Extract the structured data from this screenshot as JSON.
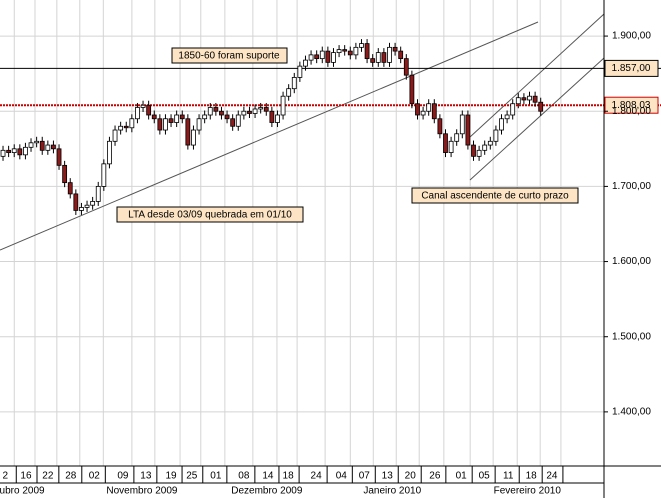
{
  "chart_data": {
    "type": "candlestick",
    "candles": [
      [
        1740,
        1754,
        1734,
        1748
      ],
      [
        1748,
        1754,
        1739,
        1745
      ],
      [
        1745,
        1756,
        1739,
        1750
      ],
      [
        1750,
        1756,
        1736,
        1742
      ],
      [
        1742,
        1758,
        1736,
        1752
      ],
      [
        1752,
        1764,
        1746,
        1758
      ],
      [
        1758,
        1766,
        1752,
        1760
      ],
      [
        1760,
        1766,
        1742,
        1748
      ],
      [
        1748,
        1761,
        1742,
        1755
      ],
      [
        1755,
        1761,
        1744,
        1750
      ],
      [
        1750,
        1756,
        1722,
        1728
      ],
      [
        1728,
        1734,
        1699,
        1705
      ],
      [
        1705,
        1711,
        1684,
        1690
      ],
      [
        1690,
        1696,
        1662,
        1668
      ],
      [
        1668,
        1678,
        1662,
        1672
      ],
      [
        1672,
        1681,
        1666,
        1675
      ],
      [
        1675,
        1686,
        1669,
        1680
      ],
      [
        1680,
        1706,
        1674,
        1700
      ],
      [
        1700,
        1736,
        1694,
        1730
      ],
      [
        1730,
        1766,
        1724,
        1760
      ],
      [
        1760,
        1781,
        1754,
        1775
      ],
      [
        1775,
        1786,
        1769,
        1780
      ],
      [
        1780,
        1786,
        1772,
        1778
      ],
      [
        1778,
        1796,
        1772,
        1790
      ],
      [
        1790,
        1811,
        1784,
        1805
      ],
      [
        1805,
        1814,
        1799,
        1808
      ],
      [
        1808,
        1814,
        1789,
        1795
      ],
      [
        1795,
        1801,
        1784,
        1790
      ],
      [
        1790,
        1796,
        1769,
        1775
      ],
      [
        1775,
        1796,
        1769,
        1790
      ],
      [
        1790,
        1796,
        1779,
        1785
      ],
      [
        1785,
        1801,
        1779,
        1795
      ],
      [
        1795,
        1801,
        1784,
        1790
      ],
      [
        1790,
        1796,
        1749,
        1755
      ],
      [
        1755,
        1781,
        1749,
        1775
      ],
      [
        1775,
        1796,
        1769,
        1790
      ],
      [
        1790,
        1801,
        1784,
        1795
      ],
      [
        1795,
        1811,
        1789,
        1805
      ],
      [
        1805,
        1811,
        1794,
        1800
      ],
      [
        1800,
        1806,
        1789,
        1795
      ],
      [
        1795,
        1801,
        1784,
        1790
      ],
      [
        1790,
        1796,
        1774,
        1780
      ],
      [
        1780,
        1801,
        1774,
        1795
      ],
      [
        1795,
        1806,
        1789,
        1800
      ],
      [
        1800,
        1806,
        1791,
        1797
      ],
      [
        1797,
        1809,
        1791,
        1803
      ],
      [
        1803,
        1811,
        1797,
        1805
      ],
      [
        1805,
        1811,
        1794,
        1800
      ],
      [
        1800,
        1806,
        1779,
        1785
      ],
      [
        1785,
        1801,
        1779,
        1795
      ],
      [
        1795,
        1826,
        1789,
        1820
      ],
      [
        1820,
        1836,
        1814,
        1830
      ],
      [
        1830,
        1851,
        1824,
        1845
      ],
      [
        1845,
        1866,
        1839,
        1860
      ],
      [
        1860,
        1874,
        1854,
        1868
      ],
      [
        1868,
        1881,
        1862,
        1875
      ],
      [
        1875,
        1881,
        1864,
        1870
      ],
      [
        1870,
        1886,
        1864,
        1880
      ],
      [
        1880,
        1886,
        1859,
        1865
      ],
      [
        1865,
        1884,
        1859,
        1878
      ],
      [
        1878,
        1888,
        1872,
        1882
      ],
      [
        1882,
        1888,
        1874,
        1880
      ],
      [
        1880,
        1886,
        1869,
        1875
      ],
      [
        1875,
        1891,
        1869,
        1885
      ],
      [
        1885,
        1896,
        1879,
        1890
      ],
      [
        1890,
        1896,
        1864,
        1870
      ],
      [
        1870,
        1876,
        1859,
        1865
      ],
      [
        1865,
        1884,
        1859,
        1878
      ],
      [
        1878,
        1884,
        1859,
        1865
      ],
      [
        1865,
        1891,
        1859,
        1885
      ],
      [
        1885,
        1891,
        1874,
        1880
      ],
      [
        1880,
        1886,
        1864,
        1870
      ],
      [
        1870,
        1876,
        1842,
        1848
      ],
      [
        1848,
        1854,
        1804,
        1810
      ],
      [
        1810,
        1816,
        1789,
        1795
      ],
      [
        1795,
        1806,
        1789,
        1800
      ],
      [
        1800,
        1816,
        1794,
        1810
      ],
      [
        1810,
        1816,
        1784,
        1790
      ],
      [
        1790,
        1796,
        1764,
        1770
      ],
      [
        1770,
        1776,
        1739,
        1745
      ],
      [
        1745,
        1766,
        1739,
        1760
      ],
      [
        1760,
        1776,
        1754,
        1770
      ],
      [
        1770,
        1801,
        1764,
        1795
      ],
      [
        1795,
        1801,
        1749,
        1755
      ],
      [
        1755,
        1761,
        1734,
        1740
      ],
      [
        1740,
        1754,
        1734,
        1748
      ],
      [
        1748,
        1761,
        1742,
        1755
      ],
      [
        1755,
        1766,
        1749,
        1760
      ],
      [
        1760,
        1781,
        1754,
        1775
      ],
      [
        1775,
        1796,
        1769,
        1790
      ],
      [
        1790,
        1801,
        1784,
        1795
      ],
      [
        1795,
        1816,
        1789,
        1810
      ],
      [
        1810,
        1824,
        1804,
        1818
      ],
      [
        1818,
        1824,
        1809,
        1815
      ],
      [
        1815,
        1826,
        1809,
        1820
      ],
      [
        1820,
        1826,
        1806,
        1812
      ],
      [
        1812,
        1818,
        1794,
        1800
      ]
    ],
    "up_color": "#ffffff",
    "down_color": "#8b1a1a",
    "xlim": [
      -0.54,
      107.3
    ],
    "xticks": [
      {
        "value": 0.4,
        "label": "2"
      },
      {
        "value": 4.1,
        "label": "16"
      },
      {
        "value": 8,
        "label": "22"
      },
      {
        "value": 12.1,
        "label": "28"
      },
      {
        "value": 16.3,
        "label": "02"
      },
      {
        "value": 21.4,
        "label": "09"
      },
      {
        "value": 25.5,
        "label": "13"
      },
      {
        "value": 30,
        "label": "19"
      },
      {
        "value": 33.7,
        "label": "25"
      },
      {
        "value": 38,
        "label": "01"
      },
      {
        "value": 43,
        "label": "08"
      },
      {
        "value": 47.3,
        "label": "14"
      },
      {
        "value": 50.9,
        "label": "18"
      },
      {
        "value": 55.9,
        "label": "24"
      },
      {
        "value": 60.4,
        "label": "04"
      },
      {
        "value": 64.5,
        "label": "07"
      },
      {
        "value": 68.6,
        "label": "13"
      },
      {
        "value": 72.7,
        "label": "20"
      },
      {
        "value": 77.1,
        "label": "26"
      },
      {
        "value": 81.8,
        "label": "01"
      },
      {
        "value": 85.9,
        "label": "05"
      },
      {
        "value": 90.2,
        "label": "11"
      },
      {
        "value": 94.3,
        "label": "18"
      },
      {
        "value": 98,
        "label": "24"
      }
    ],
    "month_labels": [
      {
        "value": 3.4,
        "label": "ubro 2009"
      },
      {
        "value": 24.8,
        "label": "Novembro 2009"
      },
      {
        "value": 47.1,
        "label": "Dezembro 2009"
      },
      {
        "value": 69.5,
        "label": "Janeiro 2010"
      },
      {
        "value": 93.6,
        "label": "Fevereiro 2010"
      }
    ],
    "ylim": [
      1328,
      1948
    ],
    "yticks": [
      {
        "value": 1400,
        "label": "1.400,00"
      },
      {
        "value": 1500,
        "label": "1.500,00"
      },
      {
        "value": 1600,
        "label": "1.600,00"
      },
      {
        "value": 1700,
        "label": "1.700,00"
      },
      {
        "value": 1800,
        "label": "1.800,00"
      },
      {
        "value": 1900,
        "label": "1.900,00"
      }
    ],
    "grid": true,
    "levels": [
      {
        "value": 1857,
        "label": "1.857,00",
        "color": "#000000"
      },
      {
        "value": 1808.03,
        "label": "1.808,03",
        "color": "#cc0000"
      }
    ],
    "annotations": [
      "1850-60 foram suporte",
      "LTA desde 03/09 quebrada em 01/10",
      "Canal ascendente de curto prazo"
    ]
  }
}
